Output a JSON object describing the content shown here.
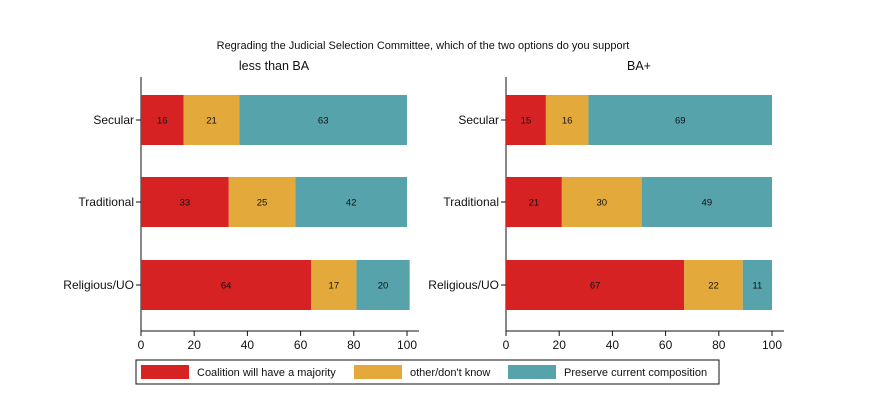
{
  "chart_data": {
    "type": "bar",
    "orientation": "horizontal",
    "stacked": true,
    "title": "Regrading the Judicial Selection Committee, which of the two options do you support",
    "xlim": [
      0,
      100
    ],
    "xticks": [
      "0",
      "20",
      "40",
      "60",
      "80",
      "100"
    ],
    "grid": false,
    "legend_position": "bottom",
    "categories": [
      "Secular",
      "Traditional",
      "Religious/UO"
    ],
    "series_meta": [
      {
        "name": "Coalition will have a majority",
        "color": "#d62222"
      },
      {
        "name": "other/don't know",
        "color": "#e3a93a"
      },
      {
        "name": "Preserve current composition",
        "color": "#56a3ab"
      }
    ],
    "panels": [
      {
        "title": "less than BA",
        "series": [
          {
            "name": "Coalition will have a majority",
            "values": [
              16,
              33,
              64
            ]
          },
          {
            "name": "other/don't know",
            "values": [
              21,
              25,
              17
            ]
          },
          {
            "name": "Preserve current composition",
            "values": [
              63,
              42,
              20
            ]
          }
        ]
      },
      {
        "title": "BA+",
        "series": [
          {
            "name": "Coalition will have a majority",
            "values": [
              15,
              21,
              67
            ]
          },
          {
            "name": "other/don't know",
            "values": [
              16,
              30,
              22
            ]
          },
          {
            "name": "Preserve current composition",
            "values": [
              69,
              49,
              11
            ]
          }
        ]
      }
    ]
  }
}
